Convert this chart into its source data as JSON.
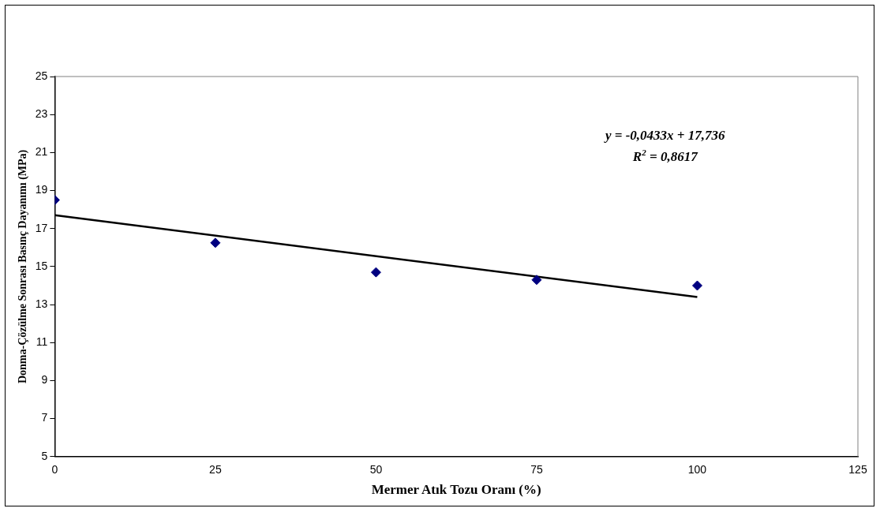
{
  "chart_data": {
    "type": "scatter",
    "xlabel": "Mermer Atık Tozu Oranı (%)",
    "ylabel": "Donma-Çözülme Sonrası Basınç Dayanımı (MPa)",
    "x": [
      0,
      25,
      50,
      75,
      100
    ],
    "series": [
      {
        "color": "#000080",
        "values": [
          18.5,
          16.25,
          14.7,
          14.3,
          14.0
        ],
        "marker": "diamond"
      },
      {
        "type": "line",
        "color": "#000000",
        "x": [
          0,
          100
        ],
        "values": [
          17.7,
          13.4
        ],
        "marker": "none"
      }
    ],
    "xlim": [
      0,
      125
    ],
    "xticks": [
      0,
      25,
      50,
      75,
      100,
      125
    ],
    "ylim": [
      5,
      25
    ],
    "yticks": [
      5,
      7,
      9,
      11,
      13,
      15,
      17,
      19,
      21,
      23,
      25
    ],
    "grid": false,
    "legend": false,
    "annotations": [
      "y = -0,0433x + 17,736",
      "R$^{2}$ = 0,8617"
    ]
  }
}
